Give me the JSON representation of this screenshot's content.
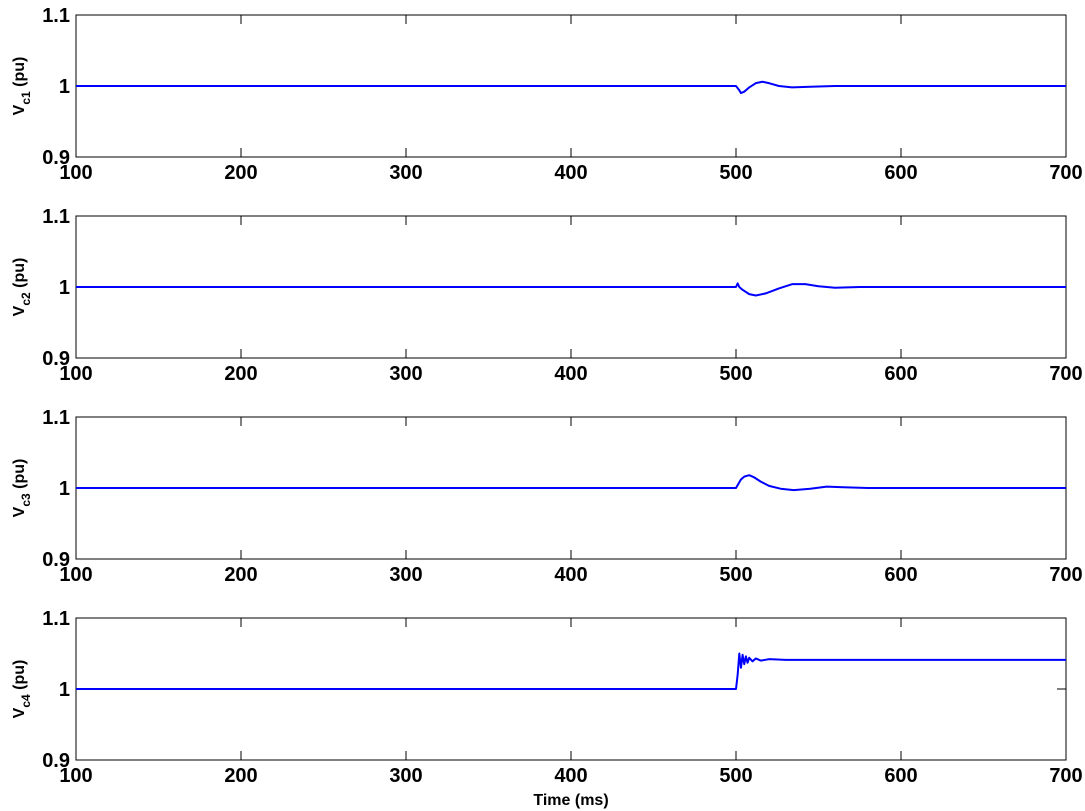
{
  "chart_data": [
    {
      "type": "line",
      "ylabel": {
        "main": "V",
        "sub": "c1",
        "unit": " (pu)"
      },
      "xlabel": "",
      "xlim": [
        100,
        700
      ],
      "ylim": [
        0.9,
        1.1
      ],
      "xticks": [
        "100",
        "200",
        "300",
        "400",
        "500",
        "600",
        "700"
      ],
      "yticks": [
        "0.9",
        "1",
        "1.1"
      ],
      "grid": false,
      "series": [
        {
          "color": "#0000ff",
          "x": [
            100,
            500,
            501,
            502,
            503,
            505,
            508,
            512,
            516,
            520,
            526,
            534,
            545,
            560,
            700
          ],
          "y": [
            1.0,
            1.0,
            0.997,
            0.994,
            0.99,
            0.992,
            0.998,
            1.004,
            1.006,
            1.004,
            1.0,
            0.998,
            0.999,
            1.0,
            1.0
          ]
        }
      ]
    },
    {
      "type": "line",
      "ylabel": {
        "main": "V",
        "sub": "c2",
        "unit": " (pu)"
      },
      "xlabel": "",
      "xlim": [
        100,
        700
      ],
      "ylim": [
        0.9,
        1.1
      ],
      "xticks": [
        "100",
        "200",
        "300",
        "400",
        "500",
        "600",
        "700"
      ],
      "yticks": [
        "0.9",
        "1",
        "1.1"
      ],
      "grid": false,
      "series": [
        {
          "color": "#0000ff",
          "x": [
            100,
            500,
            501,
            502,
            504,
            508,
            512,
            518,
            526,
            534,
            542,
            550,
            560,
            575,
            700
          ],
          "y": [
            1.0,
            1.0,
            1.005,
            1.0,
            0.996,
            0.99,
            0.988,
            0.991,
            0.998,
            1.004,
            1.004,
            1.001,
            0.999,
            1.0,
            1.0
          ]
        }
      ]
    },
    {
      "type": "line",
      "ylabel": {
        "main": "V",
        "sub": "c3",
        "unit": " (pu)"
      },
      "xlabel": "",
      "xlim": [
        100,
        700
      ],
      "ylim": [
        0.9,
        1.1
      ],
      "xticks": [
        "100",
        "200",
        "300",
        "400",
        "500",
        "600",
        "700"
      ],
      "yticks": [
        "0.9",
        "1",
        "1.1"
      ],
      "grid": false,
      "series": [
        {
          "color": "#0000ff",
          "x": [
            100,
            500,
            501,
            503,
            505,
            508,
            511,
            515,
            520,
            527,
            535,
            545,
            555,
            565,
            580,
            700
          ],
          "y": [
            1.0,
            1.0,
            1.004,
            1.012,
            1.016,
            1.018,
            1.015,
            1.009,
            1.003,
            0.999,
            0.997,
            0.999,
            1.002,
            1.001,
            1.0,
            1.0
          ]
        }
      ]
    },
    {
      "type": "line",
      "ylabel": {
        "main": "V",
        "sub": "c4",
        "unit": " (pu)"
      },
      "xlabel": "Time (ms)",
      "xlim": [
        100,
        700
      ],
      "ylim": [
        0.9,
        1.1
      ],
      "xticks": [
        "100",
        "200",
        "300",
        "400",
        "500",
        "600",
        "700"
      ],
      "yticks": [
        "0.9",
        "1",
        "1.1"
      ],
      "grid": false,
      "series": [
        {
          "color": "#0000ff",
          "x": [
            100,
            500,
            501,
            502,
            503,
            504,
            505,
            506,
            507,
            508,
            510,
            512,
            515,
            520,
            530,
            700
          ],
          "y": [
            1.0,
            1.0,
            1.02,
            1.05,
            1.03,
            1.048,
            1.035,
            1.046,
            1.037,
            1.044,
            1.039,
            1.043,
            1.04,
            1.042,
            1.041,
            1.041
          ]
        }
      ]
    }
  ]
}
